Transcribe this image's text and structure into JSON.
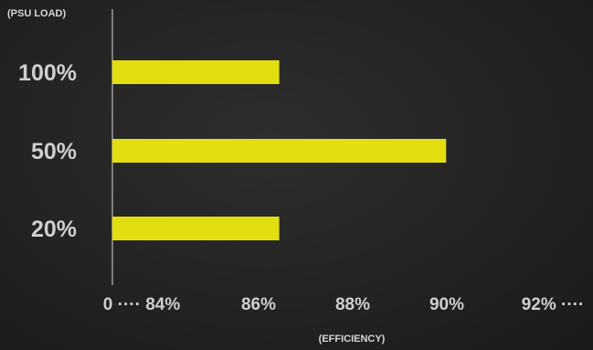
{
  "chart_data": {
    "type": "bar",
    "orientation": "horizontal",
    "title": "",
    "ylabel": "(PSU LOAD)",
    "xlabel": "(EFFICIENCY)",
    "categories": [
      "100%",
      "50%",
      "20%"
    ],
    "values": [
      87,
      90,
      87
    ],
    "value_unit": "%",
    "xlim": [
      84,
      92.5
    ],
    "x_tick_labels": [
      "0 ···· 84%",
      "86%",
      "88%",
      "90%",
      "92% ····"
    ],
    "x_tick_values": [
      84,
      86,
      88,
      90,
      92
    ],
    "bar_color": "#e3de10",
    "grid": false,
    "legend": "none"
  }
}
